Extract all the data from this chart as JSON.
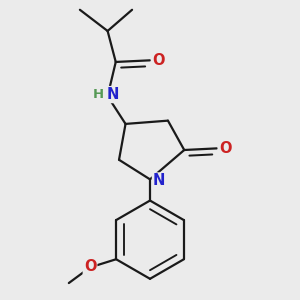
{
  "background_color": "#ebebeb",
  "bond_color": "#1a1a1a",
  "bond_width": 1.6,
  "atom_colors": {
    "N": "#2222cc",
    "O": "#cc2222",
    "C": "#1a1a1a",
    "H": "#559955"
  },
  "font_size_atom": 10.5
}
